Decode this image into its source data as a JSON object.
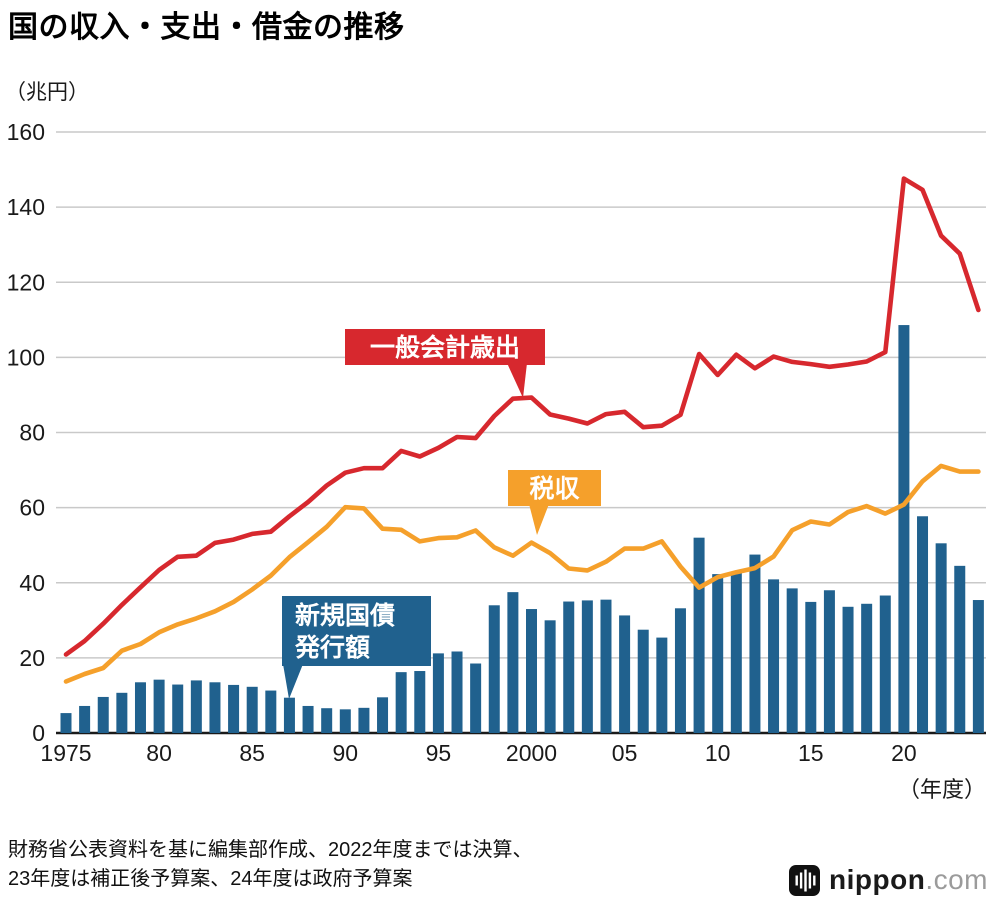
{
  "title": "国の収入・支出・借金の推移",
  "source": {
    "line1": "財務省公表資料を基に編集部作成、2022年度までは決算、",
    "line2": "23年度は補正後予算案、24年度は政府予算案"
  },
  "logo": {
    "name": "nippon",
    "tld": ".com"
  },
  "chart_data": {
    "type": "bar",
    "subtype": "combo-bar-line",
    "title": "国の収入・支出・借金の推移",
    "ylabel_unit": "（兆円）",
    "xlabel_unit": "（年度）",
    "ylim": [
      0,
      160
    ],
    "yticks": [
      0,
      20,
      40,
      60,
      80,
      100,
      120,
      140,
      160
    ],
    "grid": "horizontal",
    "x": [
      1975,
      1976,
      1977,
      1978,
      1979,
      1980,
      1981,
      1982,
      1983,
      1984,
      1985,
      1986,
      1987,
      1988,
      1989,
      1990,
      1991,
      1992,
      1993,
      1994,
      1995,
      1996,
      1997,
      1998,
      1999,
      2000,
      2001,
      2002,
      2003,
      2004,
      2005,
      2006,
      2007,
      2008,
      2009,
      2010,
      2011,
      2012,
      2013,
      2014,
      2015,
      2016,
      2017,
      2018,
      2019,
      2020,
      2021,
      2022,
      2023,
      2024
    ],
    "xticks": [
      {
        "x": 1975,
        "label": "1975"
      },
      {
        "x": 1980,
        "label": "80"
      },
      {
        "x": 1985,
        "label": "85"
      },
      {
        "x": 1990,
        "label": "90"
      },
      {
        "x": 1995,
        "label": "95"
      },
      {
        "x": 2000,
        "label": "2000"
      },
      {
        "x": 2005,
        "label": "05"
      },
      {
        "x": 2010,
        "label": "10"
      },
      {
        "x": 2015,
        "label": "15"
      },
      {
        "x": 2020,
        "label": "20"
      }
    ],
    "series": [
      {
        "name": "一般会計歳出",
        "type": "line",
        "color": "#d7282e",
        "values": [
          20.9,
          24.5,
          29.1,
          34.1,
          38.8,
          43.4,
          46.9,
          47.2,
          50.6,
          51.5,
          53.0,
          53.6,
          57.7,
          61.5,
          65.9,
          69.3,
          70.5,
          70.5,
          75.1,
          73.6,
          75.9,
          78.8,
          78.5,
          84.4,
          89.0,
          89.3,
          84.8,
          83.7,
          82.4,
          84.9,
          85.5,
          81.4,
          81.8,
          84.7,
          100.9,
          95.3,
          100.7,
          97.1,
          100.2,
          98.8,
          98.2,
          97.5,
          98.1,
          98.9,
          101.4,
          147.6,
          144.6,
          132.4,
          127.6,
          112.6
        ]
      },
      {
        "name": "税収",
        "type": "line",
        "color": "#f5a02b",
        "values": [
          13.7,
          15.7,
          17.3,
          21.9,
          23.7,
          26.8,
          28.9,
          30.5,
          32.4,
          34.9,
          38.2,
          41.9,
          46.8,
          50.8,
          54.9,
          60.1,
          59.8,
          54.4,
          54.1,
          51.0,
          51.9,
          52.1,
          53.9,
          49.4,
          47.2,
          50.7,
          47.9,
          43.8,
          43.3,
          45.6,
          49.1,
          49.1,
          51.0,
          44.3,
          38.7,
          41.5,
          42.8,
          43.9,
          47.0,
          54.0,
          56.3,
          55.5,
          58.8,
          60.4,
          58.4,
          60.8,
          67.0,
          71.1,
          69.6,
          69.6
        ]
      },
      {
        "name": "新規国債発行額",
        "type": "bar",
        "color": "#20618e",
        "values": [
          5.3,
          7.2,
          9.6,
          10.7,
          13.5,
          14.2,
          12.9,
          14.0,
          13.5,
          12.8,
          12.3,
          11.3,
          9.4,
          7.2,
          6.6,
          6.3,
          6.7,
          9.5,
          16.2,
          16.5,
          21.2,
          21.7,
          18.5,
          34.0,
          37.5,
          33.0,
          30.0,
          35.0,
          35.3,
          35.5,
          31.3,
          27.5,
          25.4,
          33.2,
          52.0,
          42.3,
          42.8,
          47.5,
          40.9,
          38.5,
          34.9,
          38.0,
          33.6,
          34.4,
          36.6,
          108.6,
          57.7,
          50.5,
          44.5,
          35.4
        ]
      }
    ],
    "annotations": [
      {
        "id": "expenditure-label",
        "lines": [
          "一般会計歳出"
        ],
        "color": "#d7282e"
      },
      {
        "id": "tax-label",
        "lines": [
          "税収"
        ],
        "color": "#f5a02b"
      },
      {
        "id": "bond-label",
        "lines": [
          "新規国債",
          "発行額"
        ],
        "color": "#20618e"
      }
    ],
    "legend_position": "inline-callouts"
  }
}
